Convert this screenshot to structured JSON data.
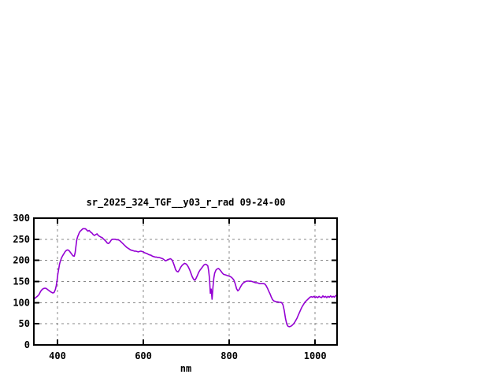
{
  "page": {
    "background": "#ffffff"
  },
  "chart_data": {
    "type": "line",
    "title": "sr_2025_324_TGF__y03_r_rad 09-24-00",
    "xlabel": "nm",
    "ylabel": "",
    "xlim": [
      345,
      1051
    ],
    "ylim": [
      0,
      300
    ],
    "xticks": [
      400,
      600,
      800,
      1000
    ],
    "yticks": [
      0,
      50,
      100,
      150,
      200,
      250,
      300
    ],
    "grid": true,
    "legend": "none",
    "colors": {
      "line": "#9400d3",
      "grid": "#888888",
      "border": "#000000",
      "text": "#000000",
      "background": "#ffffff"
    },
    "series": [
      {
        "points": [
          [
            345,
            108
          ],
          [
            349,
            112
          ],
          [
            353,
            115
          ],
          [
            357,
            119
          ],
          [
            361,
            127
          ],
          [
            365,
            132
          ],
          [
            369,
            134
          ],
          [
            373,
            134
          ],
          [
            377,
            131
          ],
          [
            381,
            128
          ],
          [
            385,
            125
          ],
          [
            389,
            123
          ],
          [
            392,
            124
          ],
          [
            395,
            131
          ],
          [
            397,
            140
          ],
          [
            399,
            152
          ],
          [
            401,
            168
          ],
          [
            403,
            180
          ],
          [
            405,
            192
          ],
          [
            407,
            199
          ],
          [
            409,
            205
          ],
          [
            412,
            211
          ],
          [
            415,
            216
          ],
          [
            418,
            221
          ],
          [
            421,
            224
          ],
          [
            424,
            225
          ],
          [
            427,
            223
          ],
          [
            430,
            219
          ],
          [
            433,
            215
          ],
          [
            436,
            211
          ],
          [
            439,
            210
          ],
          [
            441,
            218
          ],
          [
            443,
            233
          ],
          [
            445,
            249
          ],
          [
            447,
            256
          ],
          [
            449,
            261
          ],
          [
            451,
            266
          ],
          [
            453,
            269
          ],
          [
            455,
            271
          ],
          [
            457,
            273
          ],
          [
            459,
            275
          ],
          [
            462,
            275
          ],
          [
            465,
            275
          ],
          [
            468,
            272
          ],
          [
            471,
            269
          ],
          [
            474,
            271
          ],
          [
            477,
            267
          ],
          [
            480,
            265
          ],
          [
            483,
            261
          ],
          [
            486,
            259
          ],
          [
            489,
            261
          ],
          [
            492,
            263
          ],
          [
            495,
            259
          ],
          [
            498,
            257
          ],
          [
            501,
            255
          ],
          [
            504,
            254
          ],
          [
            507,
            251
          ],
          [
            510,
            248
          ],
          [
            513,
            245
          ],
          [
            516,
            241
          ],
          [
            519,
            240
          ],
          [
            522,
            243
          ],
          [
            525,
            248
          ],
          [
            528,
            250
          ],
          [
            531,
            250
          ],
          [
            534,
            250
          ],
          [
            537,
            249
          ],
          [
            540,
            249
          ],
          [
            543,
            248
          ],
          [
            546,
            246
          ],
          [
            549,
            243
          ],
          [
            552,
            240
          ],
          [
            555,
            237
          ],
          [
            558,
            234
          ],
          [
            561,
            231
          ],
          [
            564,
            229
          ],
          [
            567,
            227
          ],
          [
            570,
            225
          ],
          [
            573,
            224
          ],
          [
            576,
            223
          ],
          [
            579,
            222
          ],
          [
            582,
            222
          ],
          [
            585,
            221
          ],
          [
            588,
            220
          ],
          [
            591,
            221
          ],
          [
            594,
            222
          ],
          [
            597,
            221
          ],
          [
            600,
            220
          ],
          [
            603,
            218
          ],
          [
            606,
            217
          ],
          [
            609,
            216
          ],
          [
            612,
            214
          ],
          [
            615,
            213
          ],
          [
            618,
            212
          ],
          [
            621,
            210
          ],
          [
            624,
            209
          ],
          [
            627,
            208
          ],
          [
            630,
            208
          ],
          [
            633,
            207
          ],
          [
            636,
            207
          ],
          [
            639,
            206
          ],
          [
            642,
            205
          ],
          [
            645,
            204
          ],
          [
            648,
            202
          ],
          [
            651,
            199
          ],
          [
            654,
            200
          ],
          [
            657,
            202
          ],
          [
            660,
            203
          ],
          [
            663,
            204
          ],
          [
            666,
            202
          ],
          [
            669,
            196
          ],
          [
            672,
            188
          ],
          [
            675,
            178
          ],
          [
            678,
            174
          ],
          [
            681,
            173
          ],
          [
            684,
            178
          ],
          [
            687,
            184
          ],
          [
            690,
            188
          ],
          [
            693,
            191
          ],
          [
            696,
            193
          ],
          [
            699,
            192
          ],
          [
            702,
            189
          ],
          [
            705,
            184
          ],
          [
            708,
            177
          ],
          [
            711,
            169
          ],
          [
            714,
            161
          ],
          [
            717,
            155
          ],
          [
            720,
            153
          ],
          [
            723,
            158
          ],
          [
            726,
            165
          ],
          [
            729,
            172
          ],
          [
            732,
            177
          ],
          [
            735,
            181
          ],
          [
            738,
            185
          ],
          [
            741,
            189
          ],
          [
            744,
            191
          ],
          [
            747,
            190
          ],
          [
            750,
            187
          ],
          [
            752,
            176
          ],
          [
            754,
            158
          ],
          [
            756,
            122
          ],
          [
            758,
            132
          ],
          [
            760,
            108
          ],
          [
            762,
            136
          ],
          [
            764,
            158
          ],
          [
            766,
            170
          ],
          [
            769,
            177
          ],
          [
            772,
            180
          ],
          [
            775,
            181
          ],
          [
            778,
            178
          ],
          [
            781,
            174
          ],
          [
            784,
            170
          ],
          [
            787,
            167
          ],
          [
            790,
            166
          ],
          [
            793,
            165
          ],
          [
            796,
            164
          ],
          [
            799,
            163
          ],
          [
            802,
            162
          ],
          [
            805,
            160
          ],
          [
            808,
            157
          ],
          [
            811,
            153
          ],
          [
            814,
            144
          ],
          [
            817,
            133
          ],
          [
            820,
            128
          ],
          [
            823,
            131
          ],
          [
            826,
            137
          ],
          [
            829,
            142
          ],
          [
            832,
            146
          ],
          [
            835,
            148
          ],
          [
            838,
            150
          ],
          [
            841,
            151
          ],
          [
            844,
            151
          ],
          [
            847,
            151
          ],
          [
            850,
            151
          ],
          [
            853,
            150
          ],
          [
            856,
            149
          ],
          [
            859,
            148
          ],
          [
            862,
            147
          ],
          [
            865,
            147
          ],
          [
            868,
            146
          ],
          [
            871,
            145
          ],
          [
            874,
            145
          ],
          [
            877,
            145
          ],
          [
            880,
            145
          ],
          [
            883,
            144
          ],
          [
            886,
            140
          ],
          [
            889,
            134
          ],
          [
            892,
            127
          ],
          [
            895,
            121
          ],
          [
            898,
            113
          ],
          [
            901,
            107
          ],
          [
            904,
            104
          ],
          [
            907,
            103
          ],
          [
            910,
            102
          ],
          [
            913,
            102
          ],
          [
            916,
            101
          ],
          [
            919,
            101
          ],
          [
            922,
            100
          ],
          [
            925,
            95
          ],
          [
            928,
            82
          ],
          [
            931,
            62
          ],
          [
            934,
            49
          ],
          [
            937,
            44
          ],
          [
            940,
            43
          ],
          [
            943,
            44
          ],
          [
            946,
            46
          ],
          [
            949,
            49
          ],
          [
            952,
            53
          ],
          [
            955,
            58
          ],
          [
            958,
            64
          ],
          [
            961,
            71
          ],
          [
            964,
            78
          ],
          [
            967,
            85
          ],
          [
            970,
            91
          ],
          [
            973,
            96
          ],
          [
            976,
            101
          ],
          [
            979,
            104
          ],
          [
            982,
            107
          ],
          [
            985,
            110
          ],
          [
            988,
            113
          ],
          [
            991,
            114
          ],
          [
            994,
            113
          ],
          [
            997,
            115
          ],
          [
            1000,
            112
          ],
          [
            1003,
            114
          ],
          [
            1006,
            112
          ],
          [
            1009,
            115
          ],
          [
            1012,
            113
          ],
          [
            1015,
            112
          ],
          [
            1018,
            116
          ],
          [
            1021,
            113
          ],
          [
            1024,
            115
          ],
          [
            1027,
            112
          ],
          [
            1030,
            115
          ],
          [
            1033,
            113
          ],
          [
            1036,
            116
          ],
          [
            1039,
            113
          ],
          [
            1042,
            115
          ],
          [
            1045,
            113
          ],
          [
            1048,
            117
          ],
          [
            1051,
            116
          ]
        ]
      }
    ]
  }
}
